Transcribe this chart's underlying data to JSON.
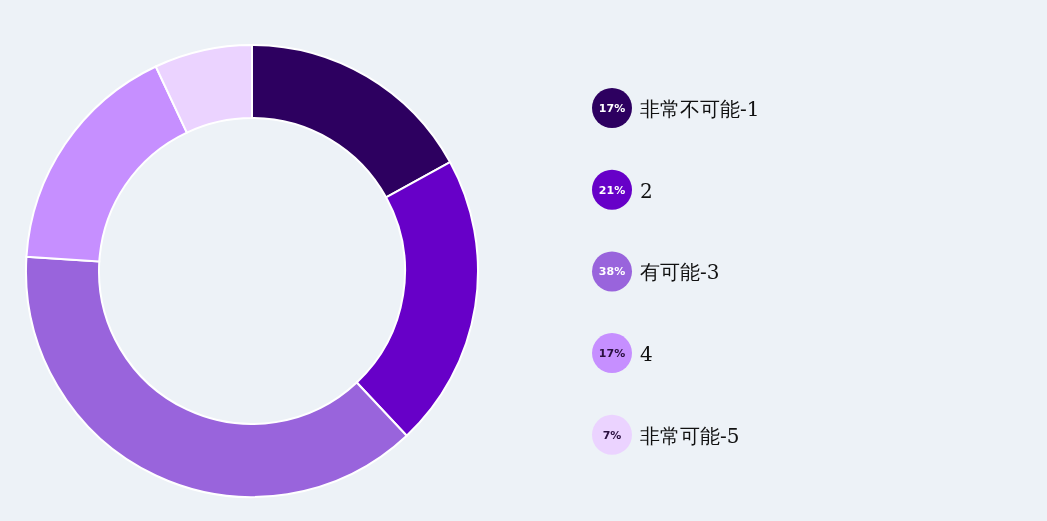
{
  "chart_data": {
    "type": "donut",
    "categories": [
      "非常不可能-1",
      "2",
      "有可能-3",
      "4",
      "非常可能-5"
    ],
    "values": [
      17,
      21,
      38,
      17,
      7
    ],
    "colors": [
      "#2d0060",
      "#6700c8",
      "#9964dc",
      "#c68fff",
      "#ebd3ff"
    ],
    "value_labels": [
      "17%",
      "21%",
      "38%",
      "17%",
      "7%"
    ],
    "legend": "right"
  }
}
